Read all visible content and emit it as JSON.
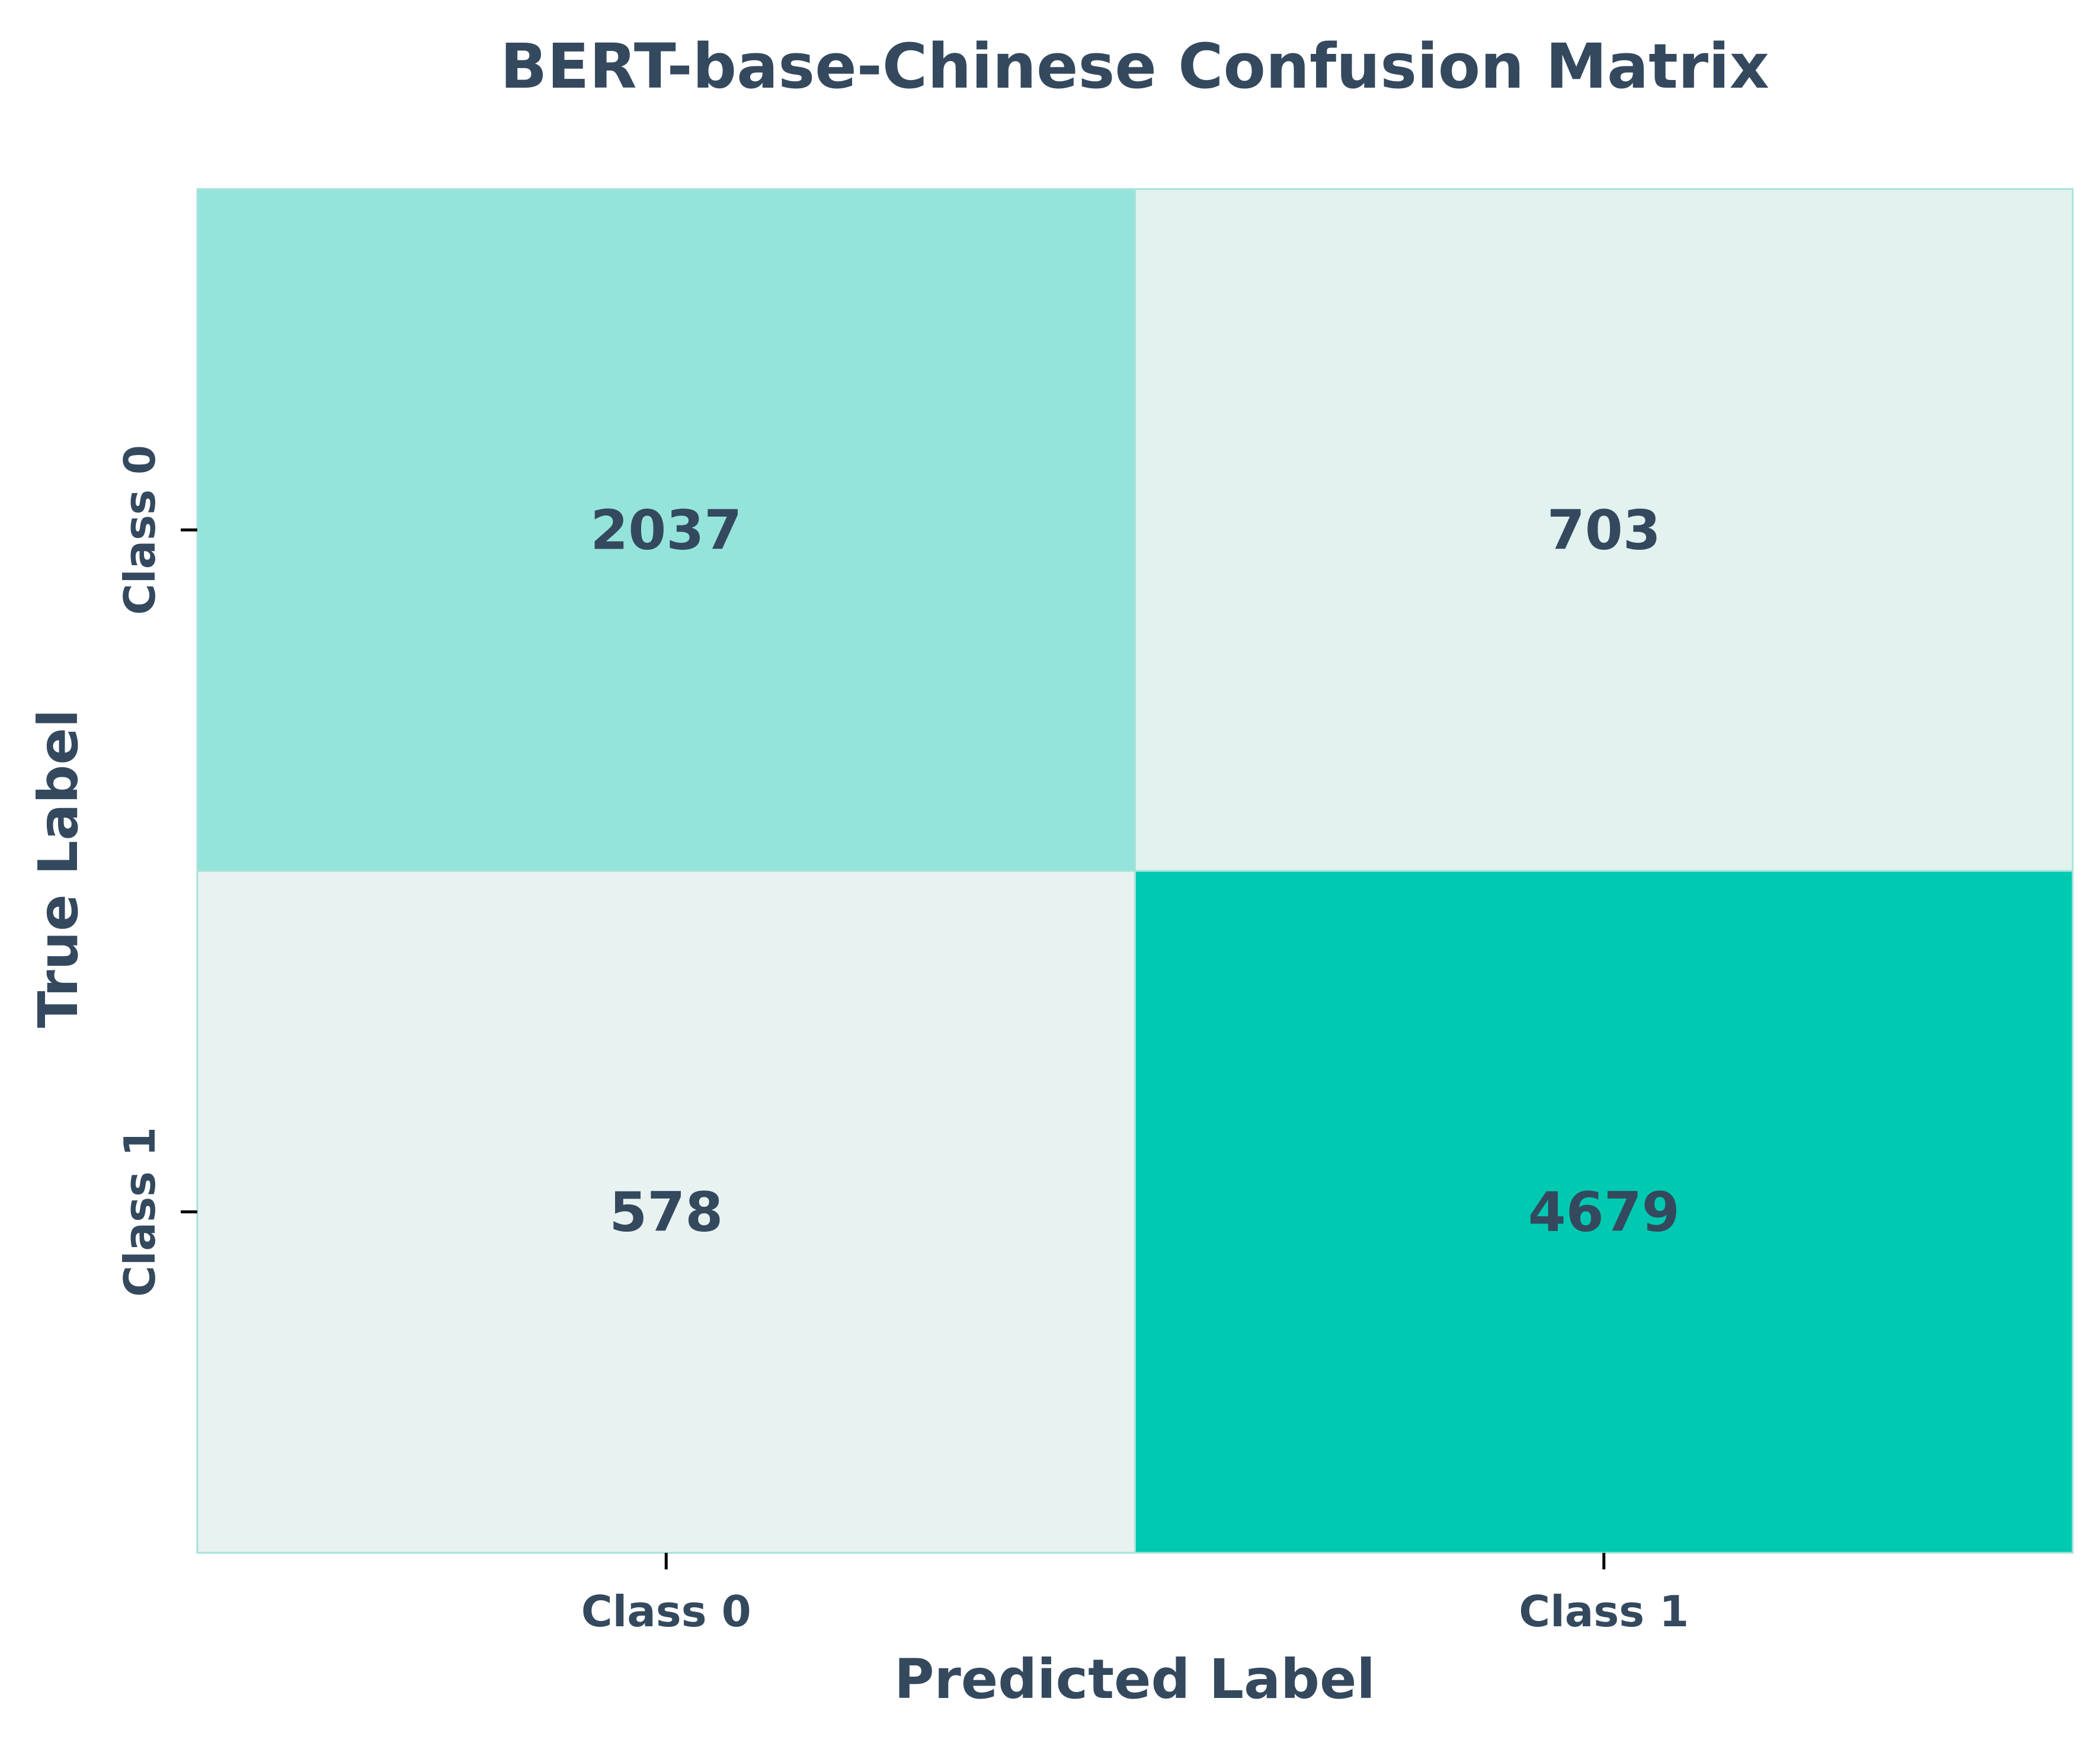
{
  "chart_data": {
    "type": "heatmap",
    "title": "BERT-base-Chinese Confusion Matrix",
    "xlabel": "Predicted Label",
    "ylabel": "True Label",
    "x_categories": [
      "Class 0",
      "Class 1"
    ],
    "y_categories": [
      "Class 0",
      "Class 1"
    ],
    "values": [
      [
        2037,
        703
      ],
      [
        578,
        4679
      ]
    ],
    "colorbar": false,
    "colors": {
      "low": "#e8f3f1",
      "high": "#00c9b2",
      "text": "#34495e",
      "grid": "#a8e2da",
      "border": "#a8e2da"
    }
  }
}
